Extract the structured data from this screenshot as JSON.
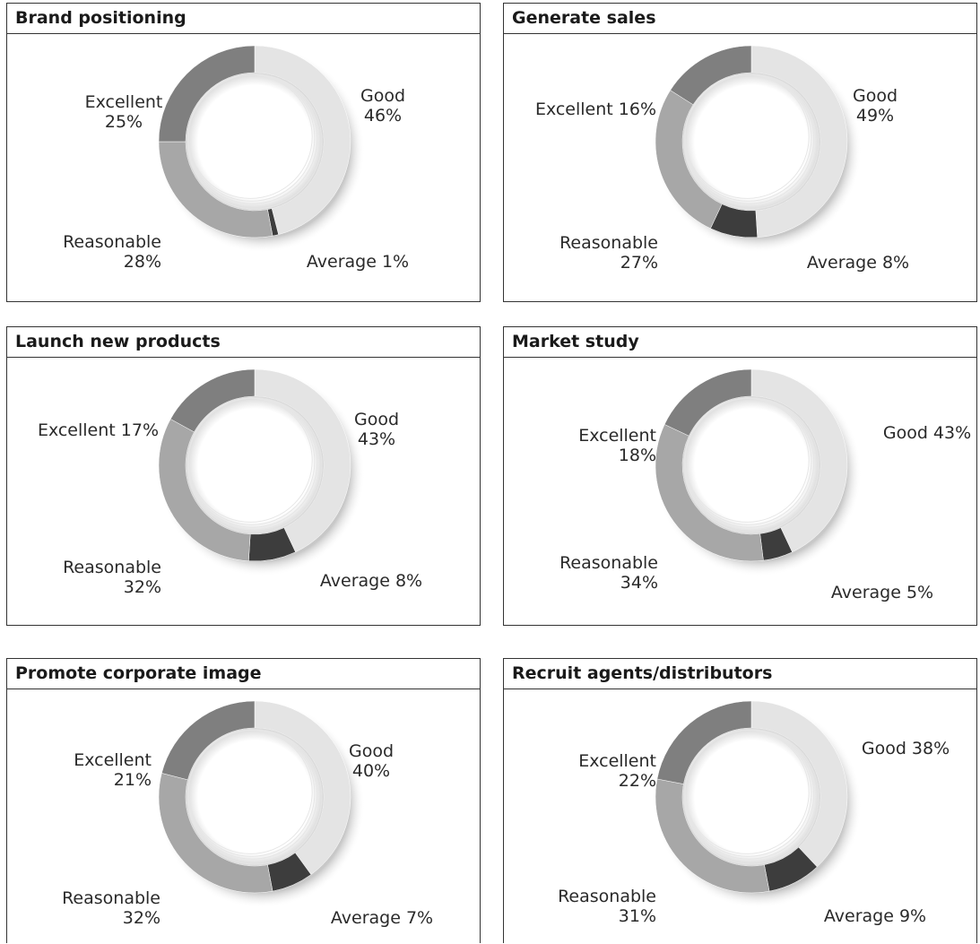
{
  "chart_data": [
    {
      "type": "pie",
      "title": "Brand positioning",
      "categories": [
        "Good",
        "Average",
        "Reasonable",
        "Excellent"
      ],
      "values": [
        46,
        1,
        28,
        25
      ],
      "labels": [
        {
          "lines": [
            "Good",
            "46%"
          ]
        },
        {
          "lines": [
            "Average 1%"
          ]
        },
        {
          "lines": [
            "Reasonable",
            "28%"
          ]
        },
        {
          "lines": [
            "Excellent",
            "25%"
          ]
        }
      ]
    },
    {
      "type": "pie",
      "title": "Generate sales",
      "categories": [
        "Good",
        "Average",
        "Reasonable",
        "Excellent"
      ],
      "values": [
        49,
        8,
        27,
        16
      ],
      "labels": [
        {
          "lines": [
            "Good",
            "49%"
          ]
        },
        {
          "lines": [
            "Average 8%"
          ]
        },
        {
          "lines": [
            "Reasonable",
            "27%"
          ]
        },
        {
          "lines": [
            "Excellent 16%"
          ]
        }
      ]
    },
    {
      "type": "pie",
      "title": "Launch new products",
      "categories": [
        "Good",
        "Average",
        "Reasonable",
        "Excellent"
      ],
      "values": [
        43,
        8,
        32,
        17
      ],
      "labels": [
        {
          "lines": [
            "Good",
            "43%"
          ]
        },
        {
          "lines": [
            "Average 8%"
          ]
        },
        {
          "lines": [
            "Reasonable",
            "32%"
          ]
        },
        {
          "lines": [
            "Excellent 17%"
          ]
        }
      ]
    },
    {
      "type": "pie",
      "title": "Market study",
      "categories": [
        "Good",
        "Average",
        "Reasonable",
        "Excellent"
      ],
      "values": [
        43,
        5,
        34,
        18
      ],
      "labels": [
        {
          "lines": [
            "Good 43%"
          ]
        },
        {
          "lines": [
            "Average 5%"
          ]
        },
        {
          "lines": [
            "Reasonable",
            "34%"
          ]
        },
        {
          "lines": [
            "Excellent",
            "18%"
          ]
        }
      ]
    },
    {
      "type": "pie",
      "title": "Promote corporate image",
      "categories": [
        "Good",
        "Average",
        "Reasonable",
        "Excellent"
      ],
      "values": [
        40,
        7,
        32,
        21
      ],
      "labels": [
        {
          "lines": [
            "Good",
            "40%"
          ]
        },
        {
          "lines": [
            "Average 7%"
          ]
        },
        {
          "lines": [
            "Reasonable",
            "32%"
          ]
        },
        {
          "lines": [
            "Excellent",
            "21%"
          ]
        }
      ]
    },
    {
      "type": "pie",
      "title": "Recruit agents/distributors",
      "categories": [
        "Good",
        "Average",
        "Reasonable",
        "Excellent"
      ],
      "values": [
        38,
        9,
        31,
        22
      ],
      "labels": [
        {
          "lines": [
            "Good 38%"
          ]
        },
        {
          "lines": [
            "Average 9%"
          ]
        },
        {
          "lines": [
            "Reasonable",
            "31%"
          ]
        },
        {
          "lines": [
            "Excellent",
            "22%"
          ]
        }
      ]
    }
  ],
  "colors": {
    "good": "#e4e4e4",
    "average": "#3d3d3d",
    "reasonable": "#a7a7a7",
    "excellent": "#7f7f7f"
  }
}
